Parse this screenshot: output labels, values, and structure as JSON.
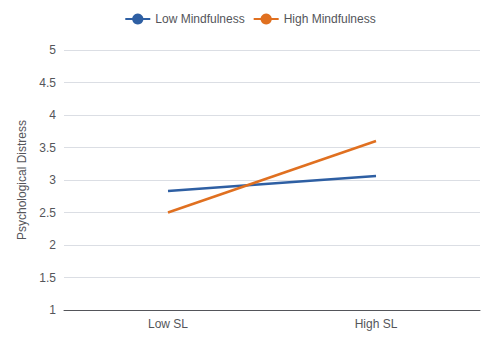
{
  "chart_data": {
    "type": "line",
    "categories": [
      "Low SL",
      "High SL"
    ],
    "series": [
      {
        "name": "Low Mindfulness",
        "color": "#2E5FA3",
        "values": [
          2.83,
          3.06
        ]
      },
      {
        "name": "High Mindfulness",
        "color": "#E07020",
        "values": [
          2.5,
          3.6
        ]
      }
    ],
    "ylabel": "Psychological Distress",
    "ylim": [
      1,
      5
    ],
    "yticks": [
      1,
      1.5,
      2,
      2.5,
      3,
      3.5,
      4,
      4.5,
      5
    ],
    "grid": true,
    "legend": "top"
  }
}
